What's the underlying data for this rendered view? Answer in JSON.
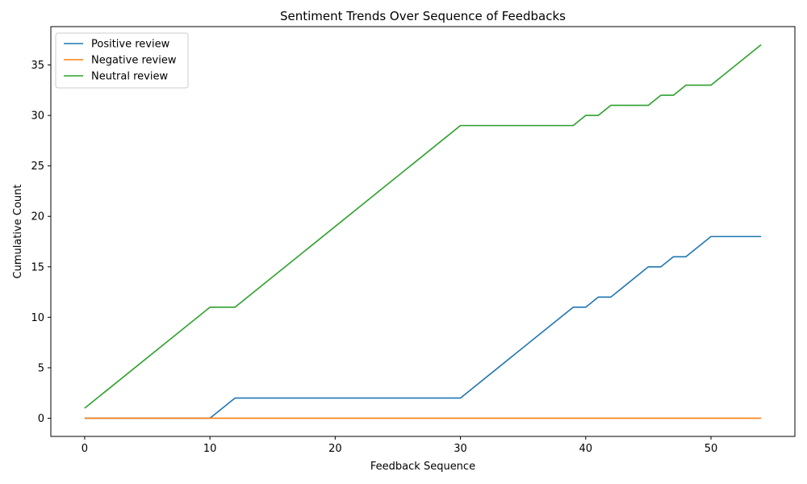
{
  "chart_data": {
    "type": "line",
    "title": "Sentiment Trends Over Sequence of Feedbacks",
    "xlabel": "Feedback Sequence",
    "ylabel": "Cumulative Count",
    "xlim": [
      -2.7,
      56.7
    ],
    "ylim": [
      -1.8,
      38.8
    ],
    "xticks": [
      0,
      10,
      20,
      30,
      40,
      50
    ],
    "yticks": [
      0,
      5,
      10,
      15,
      20,
      25,
      30,
      35
    ],
    "grid": false,
    "legend_position": "top-left",
    "series": [
      {
        "name": "Positive review",
        "color": "#1f77b4",
        "points": [
          [
            0,
            0
          ],
          [
            10,
            0
          ],
          [
            12,
            2
          ],
          [
            30,
            2
          ],
          [
            39,
            11
          ],
          [
            40,
            11
          ],
          [
            41,
            12
          ],
          [
            42,
            12
          ],
          [
            45,
            15
          ],
          [
            46,
            15
          ],
          [
            47,
            16
          ],
          [
            48,
            16
          ],
          [
            50,
            18
          ],
          [
            54,
            18
          ]
        ]
      },
      {
        "name": "Negative review",
        "color": "#ff7f0e",
        "points": [
          [
            0,
            0
          ],
          [
            54,
            0
          ]
        ]
      },
      {
        "name": "Neutral review",
        "color": "#2ca02c",
        "points": [
          [
            0,
            1
          ],
          [
            10,
            11
          ],
          [
            12,
            11
          ],
          [
            30,
            29
          ],
          [
            39,
            29
          ],
          [
            40,
            30
          ],
          [
            41,
            30
          ],
          [
            42,
            31
          ],
          [
            45,
            31
          ],
          [
            46,
            32
          ],
          [
            47,
            32
          ],
          [
            48,
            33
          ],
          [
            50,
            33
          ],
          [
            54,
            37
          ]
        ]
      }
    ]
  }
}
